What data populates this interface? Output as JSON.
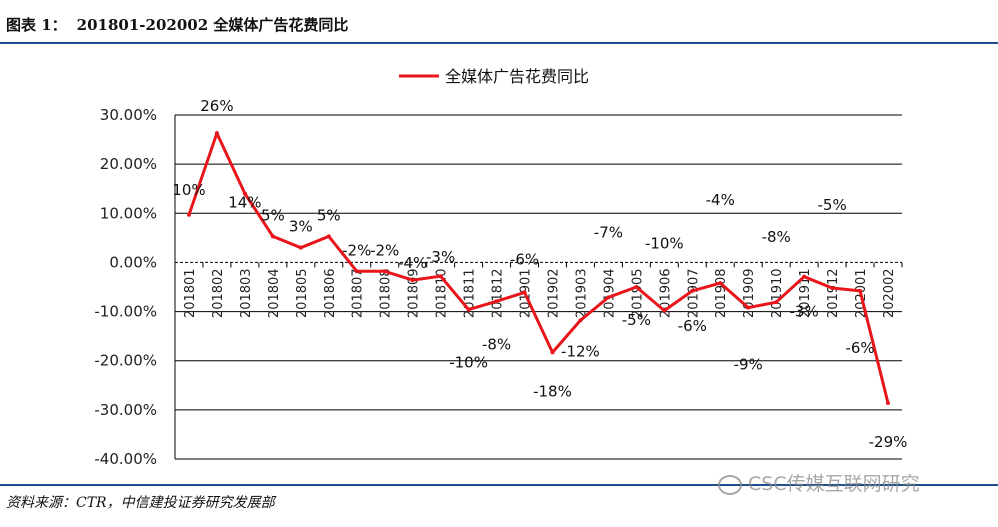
{
  "header": {
    "label": "图表 1：",
    "title": "201801-202002 全媒体广告花费同比"
  },
  "source": "资料来源：CTR，中信建投证券研究发展部",
  "watermark": "CSC传媒互联网研究",
  "colors": {
    "line": "#e8151b",
    "rule": "#1f4e8c",
    "grid": "#000000"
  },
  "chart_data": {
    "type": "line",
    "title": "",
    "legend": "全媒体广告花费同比",
    "categories": [
      "201801",
      "201802",
      "201803",
      "201804",
      "201805",
      "201806",
      "201807",
      "201808",
      "201809",
      "201810",
      "201811",
      "201812",
      "201901",
      "201902",
      "201903",
      "201904",
      "201905",
      "201906",
      "201907",
      "201908",
      "201909",
      "201910",
      "201911",
      "201912",
      "202001",
      "202002"
    ],
    "values": [
      9.7,
      26.3,
      14.0,
      5.3,
      3.0,
      5.3,
      -1.8,
      -1.8,
      -3.6,
      -2.8,
      -9.6,
      -7.9,
      -6.1,
      -18.3,
      -11.8,
      -7.1,
      -5.0,
      -9.8,
      -5.8,
      -4.2,
      -9.2,
      -8.1,
      -2.9,
      -5.2,
      -5.8,
      -28.6
    ],
    "data_labels": [
      "10%",
      "26%",
      "14%",
      "5%",
      "3%",
      "5%",
      "-2%",
      "-2%",
      "-4%",
      "-3%",
      "-10%",
      "-8%",
      "-6%",
      "-18%",
      "-12%",
      "-7%",
      "-5%",
      "-10%",
      "-6%",
      "-4%",
      "-9%",
      "-8%",
      "-3%",
      "-5%",
      "-6%",
      "-29%"
    ],
    "y_ticks": [
      "30.00%",
      "20.00%",
      "10.00%",
      "0.00%",
      "-10.00%",
      "-20.00%",
      "-30.00%",
      "-40.00%"
    ],
    "ylim": [
      -40,
      30
    ],
    "grid": true,
    "legend_position": "top-center"
  }
}
